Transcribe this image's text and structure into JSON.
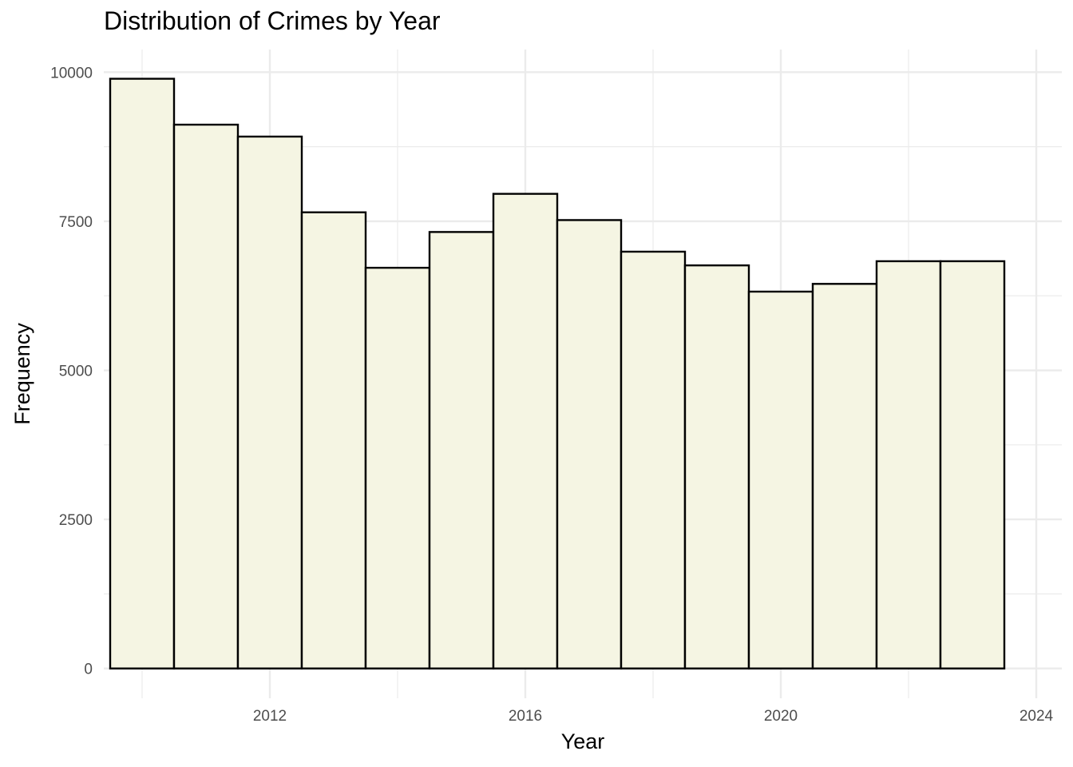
{
  "chart_data": {
    "type": "bar",
    "title": "Distribution of Crimes by Year",
    "xlabel": "Year",
    "ylabel": "Frequency",
    "x": [
      2010,
      2011,
      2012,
      2013,
      2014,
      2015,
      2016,
      2017,
      2018,
      2019,
      2020,
      2021,
      2022,
      2023
    ],
    "values": [
      9890,
      9120,
      8920,
      7650,
      6720,
      7320,
      7960,
      7520,
      6990,
      6760,
      6320,
      6450,
      6830,
      6830
    ],
    "xlim": [
      2009.4,
      2024.4
    ],
    "ylim": [
      -500,
      10380
    ],
    "x_ticks": [
      "2012",
      "2016",
      "2020",
      "2024"
    ],
    "y_ticks": [
      "0",
      "2500",
      "5000",
      "7500",
      "10000"
    ],
    "bar_fill": "#f5f5e3",
    "bar_outline": "#000000",
    "grid": true,
    "grid_color": "#ebebeb",
    "legend": "none"
  }
}
